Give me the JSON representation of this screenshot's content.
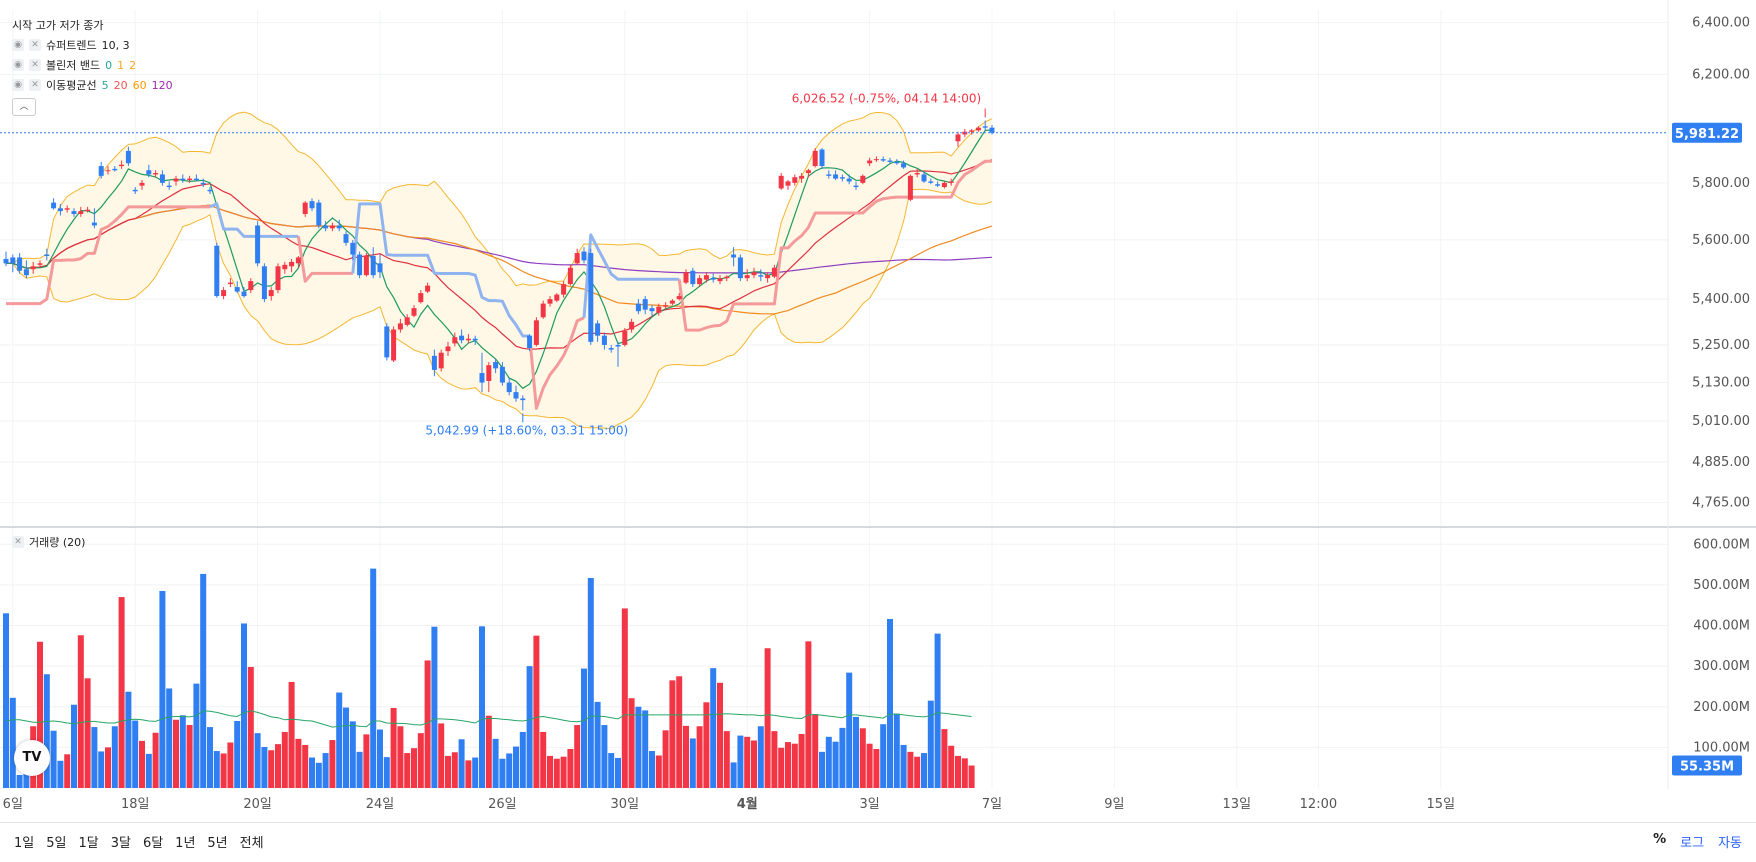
{
  "legend": {
    "ohlc_label": "시작 고가 저가 종가",
    "supertrend": {
      "name": "슈퍼트렌드",
      "params": "10, 3"
    },
    "bollinger": {
      "name": "볼린저 밴드",
      "params": [
        {
          "text": "0",
          "color": "#26a69a"
        },
        {
          "text": "1",
          "color": "#f5a623"
        },
        {
          "text": "2",
          "color": "#f5a623"
        }
      ]
    },
    "ma": {
      "name": "이동평균선",
      "params": [
        {
          "text": "5",
          "color": "#26a69a"
        },
        {
          "text": "20",
          "color": "#ef5350"
        },
        {
          "text": "60",
          "color": "#ff9800"
        },
        {
          "text": "120",
          "color": "#9c27b0"
        }
      ]
    },
    "collapse_icon": "chevron-up-icon"
  },
  "volume_legend": {
    "name": "거래량 (20)"
  },
  "toolbar": {
    "periods": [
      "1일",
      "5일",
      "1달",
      "3달",
      "6달",
      "1년",
      "5년",
      "전체"
    ],
    "scale": {
      "percent": "%",
      "log": "로그",
      "auto": "자동"
    }
  },
  "logo": {
    "text": "TV"
  },
  "colors": {
    "up": "#f23645",
    "down": "#2f7ef2",
    "bb": "#f5b731",
    "ma5": "#1c9a62",
    "ma20": "#e03040",
    "ma60": "#f08a20",
    "ma120": "#8e3fbf",
    "supertrend_up": "#f49a9a",
    "supertrend_down": "#8fb4ef"
  },
  "chart_data": {
    "type": "candlestick",
    "price_axis": {
      "ticks": [
        "6,400.00",
        "6,200.00",
        "5,981.22",
        "5,800.00",
        "5,600.00",
        "5,400.00",
        "5,250.00",
        "5,130.00",
        "5,010.00",
        "4,885.00",
        "4,765.00"
      ],
      "label_values": [
        6400,
        6200,
        5800,
        5600,
        5400,
        5250,
        5130,
        5010,
        4885,
        4765
      ],
      "range": [
        4700,
        6450
      ],
      "log": true
    },
    "volume_axis": {
      "ticks": [
        "600.00M",
        "500.00M",
        "400.00M",
        "300.00M",
        "200.00M",
        "100.00M"
      ],
      "label_values": [
        600,
        500,
        400,
        300,
        200,
        100
      ],
      "range": [
        0,
        640
      ],
      "unit": "M"
    },
    "x_ticks": [
      {
        "label": "6일",
        "i": 1
      },
      {
        "label": "18일",
        "i": 19
      },
      {
        "label": "20일",
        "i": 37
      },
      {
        "label": "24일",
        "i": 55
      },
      {
        "label": "26일",
        "i": 73
      },
      {
        "label": "30일",
        "i": 91
      },
      {
        "label": "4월",
        "i": 109
      },
      {
        "label": "3일",
        "i": 127
      },
      {
        "label": "7일",
        "i": 145
      },
      {
        "label": "9일",
        "i": 163
      },
      {
        "label": "13일",
        "i": 181
      },
      {
        "label": "12:00",
        "i": 193
      },
      {
        "label": "15일",
        "i": 211
      }
    ],
    "last_price": {
      "value": 5981.22,
      "label": "5,981.22"
    },
    "last_volume": {
      "value": 55.35,
      "label": "55.35M"
    },
    "high_annotation": {
      "value": 6026.52,
      "text": "6,026.52 (-0.75%, 04.14 14:00)"
    },
    "low_annotation": {
      "value": 5042.99,
      "text": "5,042.99 (+18.60%, 03.31 15:00)"
    },
    "ohlc": [
      [
        5535,
        5560,
        5510,
        5520
      ],
      [
        5540,
        5550,
        5490,
        5520
      ],
      [
        5540,
        5555,
        5485,
        5495
      ],
      [
        5500,
        5530,
        5470,
        5480
      ],
      [
        5500,
        5525,
        5485,
        5510
      ],
      [
        5515,
        5530,
        5505,
        5520
      ],
      [
        5550,
        5570,
        5530,
        5545
      ],
      [
        5730,
        5745,
        5705,
        5710
      ],
      [
        5710,
        5725,
        5685,
        5700
      ],
      [
        5705,
        5720,
        5695,
        5710
      ],
      [
        5700,
        5710,
        5680,
        5690
      ],
      [
        5690,
        5715,
        5680,
        5700
      ],
      [
        5700,
        5715,
        5695,
        5705
      ],
      [
        5660,
        5710,
        5640,
        5650
      ],
      [
        5860,
        5875,
        5815,
        5825
      ],
      [
        5845,
        5860,
        5830,
        5845
      ],
      [
        5850,
        5860,
        5840,
        5845
      ],
      [
        5860,
        5880,
        5850,
        5865
      ],
      [
        5915,
        5930,
        5860,
        5870
      ],
      [
        5775,
        5785,
        5760,
        5770
      ],
      [
        5790,
        5810,
        5775,
        5800
      ],
      [
        5845,
        5865,
        5820,
        5830
      ],
      [
        5830,
        5845,
        5820,
        5835
      ],
      [
        5830,
        5845,
        5790,
        5800
      ],
      [
        5790,
        5805,
        5775,
        5785
      ],
      [
        5805,
        5825,
        5790,
        5815
      ],
      [
        5815,
        5830,
        5800,
        5810
      ],
      [
        5810,
        5825,
        5800,
        5815
      ],
      [
        5815,
        5830,
        5805,
        5810
      ],
      [
        5800,
        5815,
        5785,
        5795
      ],
      [
        5775,
        5785,
        5760,
        5770
      ],
      [
        5580,
        5590,
        5405,
        5410
      ],
      [
        5410,
        5440,
        5400,
        5430
      ],
      [
        5450,
        5470,
        5440,
        5455
      ],
      [
        5440,
        5460,
        5420,
        5425
      ],
      [
        5425,
        5440,
        5405,
        5410
      ],
      [
        5430,
        5470,
        5420,
        5460
      ],
      [
        5650,
        5665,
        5510,
        5520
      ],
      [
        5510,
        5520,
        5390,
        5400
      ],
      [
        5410,
        5440,
        5395,
        5430
      ],
      [
        5430,
        5520,
        5420,
        5510
      ],
      [
        5500,
        5525,
        5485,
        5515
      ],
      [
        5510,
        5535,
        5490,
        5525
      ],
      [
        5520,
        5545,
        5505,
        5540
      ],
      [
        5690,
        5735,
        5680,
        5730
      ],
      [
        5735,
        5745,
        5700,
        5710
      ],
      [
        5730,
        5740,
        5640,
        5650
      ],
      [
        5650,
        5665,
        5630,
        5640
      ],
      [
        5640,
        5660,
        5630,
        5650
      ],
      [
        5650,
        5670,
        5630,
        5640
      ],
      [
        5620,
        5630,
        5580,
        5590
      ],
      [
        5590,
        5600,
        5530,
        5550
      ],
      [
        5550,
        5560,
        5470,
        5480
      ],
      [
        5480,
        5555,
        5475,
        5545
      ],
      [
        5545,
        5575,
        5470,
        5480
      ],
      [
        5520,
        5550,
        5470,
        5490
      ],
      [
        5310,
        5320,
        5200,
        5210
      ],
      [
        5200,
        5310,
        5195,
        5300
      ],
      [
        5300,
        5335,
        5290,
        5320
      ],
      [
        5315,
        5350,
        5310,
        5340
      ],
      [
        5345,
        5380,
        5340,
        5370
      ],
      [
        5390,
        5430,
        5385,
        5420
      ],
      [
        5425,
        5455,
        5420,
        5445
      ],
      [
        5215,
        5235,
        5150,
        5170
      ],
      [
        5175,
        5235,
        5165,
        5225
      ],
      [
        5230,
        5260,
        5215,
        5245
      ],
      [
        5255,
        5290,
        5245,
        5275
      ],
      [
        5280,
        5300,
        5255,
        5265
      ],
      [
        5265,
        5285,
        5255,
        5270
      ],
      [
        5270,
        5280,
        5250,
        5265
      ],
      [
        5160,
        5225,
        5100,
        5130
      ],
      [
        5135,
        5195,
        5100,
        5185
      ],
      [
        5195,
        5205,
        5160,
        5175
      ],
      [
        5180,
        5195,
        5120,
        5130
      ],
      [
        5130,
        5145,
        5090,
        5100
      ],
      [
        5100,
        5120,
        5070,
        5080
      ],
      [
        5080,
        5090,
        5042.99,
        5075
      ],
      [
        5280,
        5285,
        5230,
        5240
      ],
      [
        5250,
        5340,
        5245,
        5330
      ],
      [
        5340,
        5395,
        5335,
        5385
      ],
      [
        5385,
        5410,
        5375,
        5400
      ],
      [
        5395,
        5420,
        5390,
        5415
      ],
      [
        5415,
        5460,
        5405,
        5450
      ],
      [
        5450,
        5515,
        5445,
        5505
      ],
      [
        5520,
        5570,
        5515,
        5555
      ],
      [
        5560,
        5575,
        5520,
        5530
      ],
      [
        5555,
        5570,
        5250,
        5260
      ],
      [
        5320,
        5330,
        5260,
        5280
      ],
      [
        5280,
        5290,
        5235,
        5250
      ],
      [
        5240,
        5250,
        5225,
        5235
      ],
      [
        5250,
        5260,
        5180,
        5245
      ],
      [
        5250,
        5305,
        5245,
        5295
      ],
      [
        5300,
        5335,
        5290,
        5325
      ],
      [
        5385,
        5400,
        5350,
        5360
      ],
      [
        5400,
        5410,
        5350,
        5365
      ],
      [
        5370,
        5380,
        5345,
        5360
      ],
      [
        5355,
        5385,
        5345,
        5375
      ],
      [
        5375,
        5390,
        5365,
        5380
      ],
      [
        5385,
        5400,
        5380,
        5395
      ],
      [
        5400,
        5420,
        5395,
        5410
      ],
      [
        5455,
        5500,
        5450,
        5490
      ],
      [
        5495,
        5505,
        5440,
        5450
      ],
      [
        5450,
        5480,
        5440,
        5470
      ],
      [
        5465,
        5490,
        5455,
        5480
      ],
      [
        5470,
        5485,
        5455,
        5465
      ],
      [
        5460,
        5480,
        5450,
        5470
      ],
      [
        5470,
        5480,
        5460,
        5475
      ],
      [
        5550,
        5575,
        5510,
        5540
      ],
      [
        5540,
        5550,
        5460,
        5470
      ],
      [
        5470,
        5500,
        5460,
        5480
      ],
      [
        5480,
        5505,
        5470,
        5490
      ],
      [
        5480,
        5500,
        5460,
        5475
      ],
      [
        5470,
        5490,
        5455,
        5480
      ],
      [
        5475,
        5515,
        5470,
        5505
      ],
      [
        5780,
        5835,
        5775,
        5825
      ],
      [
        5790,
        5810,
        5775,
        5805
      ],
      [
        5800,
        5830,
        5790,
        5820
      ],
      [
        5815,
        5835,
        5800,
        5825
      ],
      [
        5835,
        5850,
        5820,
        5845
      ],
      [
        5860,
        5925,
        5855,
        5915
      ],
      [
        5920,
        5925,
        5850,
        5860
      ],
      [
        5830,
        5845,
        5815,
        5825
      ],
      [
        5830,
        5845,
        5810,
        5815
      ],
      [
        5820,
        5830,
        5805,
        5815
      ],
      [
        5815,
        5830,
        5795,
        5805
      ],
      [
        5790,
        5805,
        5775,
        5785
      ],
      [
        5800,
        5830,
        5795,
        5825
      ],
      [
        5870,
        5890,
        5860,
        5880
      ],
      [
        5885,
        5895,
        5875,
        5885
      ],
      [
        5885,
        5895,
        5875,
        5880
      ],
      [
        5880,
        5890,
        5870,
        5875
      ],
      [
        5875,
        5885,
        5865,
        5870
      ],
      [
        5870,
        5880,
        5850,
        5855
      ],
      [
        5740,
        5830,
        5735,
        5825
      ],
      [
        5830,
        5850,
        5820,
        5835
      ],
      [
        5830,
        5840,
        5800,
        5805
      ],
      [
        5805,
        5815,
        5795,
        5800
      ],
      [
        5795,
        5805,
        5785,
        5790
      ],
      [
        5785,
        5805,
        5780,
        5800
      ],
      [
        5800,
        5815,
        5790,
        5805
      ],
      [
        5950,
        5985,
        5930,
        5975
      ],
      [
        5975,
        5995,
        5965,
        5985
      ],
      [
        5985,
        5995,
        5975,
        5990
      ],
      [
        5990,
        6005,
        5985,
        6000
      ],
      [
        6005,
        6026.52,
        5990,
        6000
      ],
      [
        6000,
        6010,
        5975,
        5981.22
      ]
    ],
    "volume": [
      430,
      222,
      32,
      77,
      152,
      360,
      280,
      141,
      67,
      83,
      205,
      376,
      270,
      150,
      90,
      100,
      152,
      470,
      237,
      166,
      116,
      84,
      136,
      485,
      245,
      168,
      179,
      155,
      257,
      527,
      150,
      91,
      85,
      112,
      165,
      405,
      298,
      135,
      101,
      93,
      108,
      138,
      261,
      121,
      106,
      75,
      62,
      86,
      118,
      235,
      198,
      164,
      89,
      132,
      540,
      144,
      76,
      197,
      152,
      86,
      98,
      135,
      314,
      397,
      159,
      79,
      88,
      120,
      68,
      75,
      398,
      178,
      121,
      72,
      85,
      102,
      138,
      300,
      375,
      138,
      79,
      72,
      77,
      96,
      155,
      294,
      517,
      212,
      155,
      86,
      74,
      442,
      221,
      200,
      191,
      91,
      80,
      142,
      265,
      275,
      153,
      122,
      152,
      211,
      295,
      259,
      140,
      63,
      129,
      126,
      117,
      152,
      344,
      140,
      99,
      113,
      109,
      133,
      361,
      182,
      89,
      126,
      114,
      148,
      284,
      175,
      147,
      109,
      96,
      157,
      416,
      183,
      106,
      89,
      77,
      86,
      215,
      380,
      145,
      104,
      79,
      73,
      55.35
    ],
    "volume_ma": [
      165,
      168,
      168,
      165,
      162,
      162,
      164,
      165,
      163,
      160,
      158,
      161,
      164,
      164,
      162,
      160,
      160,
      165,
      168,
      169,
      168,
      165,
      164,
      170,
      175,
      176,
      176,
      175,
      178,
      190,
      189,
      186,
      182,
      178,
      176,
      185,
      190,
      186,
      181,
      175,
      173,
      168,
      169,
      168,
      166,
      165,
      160,
      155,
      150,
      152,
      153,
      154,
      152,
      151,
      165,
      165,
      160,
      159,
      159,
      158,
      156,
      155,
      160,
      170,
      170,
      169,
      168,
      166,
      163,
      160,
      170,
      171,
      171,
      169,
      168,
      166,
      165,
      168,
      174,
      176,
      173,
      170,
      167,
      164,
      163,
      166,
      177,
      177,
      176,
      173,
      170,
      180,
      180,
      180,
      180,
      180,
      180,
      180,
      180,
      180,
      180,
      180,
      180,
      180,
      181,
      182,
      183,
      182,
      181,
      180,
      180,
      178,
      180,
      179,
      176,
      174,
      172,
      171,
      180,
      181,
      179,
      177,
      175,
      173,
      180,
      180,
      178,
      176,
      174,
      172,
      182,
      182,
      180,
      178,
      176,
      175,
      178,
      185,
      184,
      182,
      180,
      178,
      176
    ]
  }
}
